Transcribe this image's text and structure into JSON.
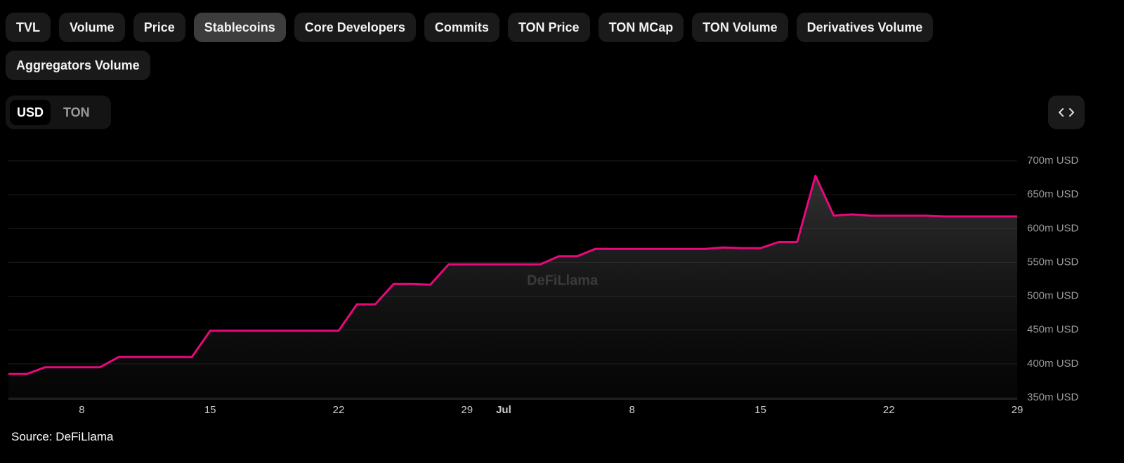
{
  "tabs": [
    "TVL",
    "Volume",
    "Price",
    "Stablecoins",
    "Core Developers",
    "Commits",
    "TON Price",
    "TON MCap",
    "TON Volume",
    "Derivatives Volume",
    "Aggregators Volume"
  ],
  "active_tab": 3,
  "currency_toggle": [
    "USD",
    "TON"
  ],
  "active_currency": 0,
  "watermark": "DeFiLlama",
  "source": "Source: DeFiLlama",
  "chart_data": {
    "type": "area",
    "categories": [
      null,
      null,
      null,
      null,
      "8",
      null,
      null,
      null,
      null,
      null,
      null,
      "15",
      null,
      null,
      null,
      null,
      null,
      null,
      "22",
      null,
      null,
      null,
      null,
      null,
      null,
      "29",
      null,
      "Jul",
      null,
      null,
      null,
      null,
      null,
      null,
      "8",
      null,
      null,
      null,
      null,
      null,
      null,
      "15",
      null,
      null,
      null,
      null,
      null,
      null,
      "22",
      null,
      null,
      null,
      null,
      null,
      null,
      "29"
    ],
    "series": [
      {
        "color": "#e8087c",
        "values": [
          385,
          385,
          395,
          395,
          395,
          395,
          410,
          410,
          410,
          410,
          410,
          449,
          449,
          449,
          449,
          449,
          449,
          449,
          449,
          488,
          488,
          518,
          518,
          517,
          547,
          547,
          547,
          547,
          547,
          547,
          559,
          559,
          570,
          570,
          570,
          570,
          570,
          570,
          570,
          572,
          571,
          571,
          580,
          580,
          678,
          619,
          621,
          619,
          619,
          619,
          619,
          618,
          618,
          618,
          618,
          618
        ]
      }
    ],
    "ylim": [
      350,
      700
    ],
    "yticks": [
      {
        "value": 350,
        "label": "350m USD"
      },
      {
        "value": 400,
        "label": "400m USD"
      },
      {
        "value": 450,
        "label": "450m USD"
      },
      {
        "value": 500,
        "label": "500m USD"
      },
      {
        "value": 550,
        "label": "550m USD"
      },
      {
        "value": 600,
        "label": "600m USD"
      },
      {
        "value": 650,
        "label": "650m USD"
      },
      {
        "value": 700,
        "label": "700m USD"
      }
    ],
    "grid": true
  }
}
